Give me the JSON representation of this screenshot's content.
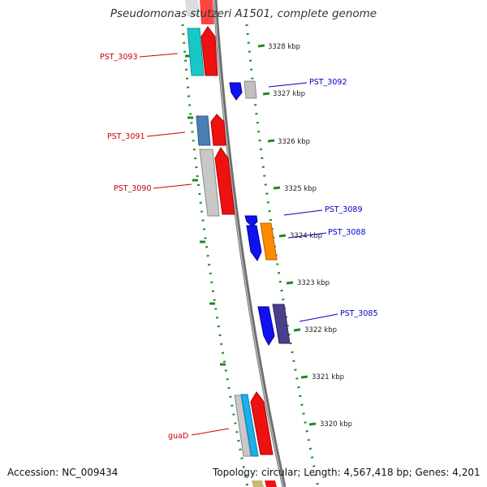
{
  "title": "Pseudomonas stutzeri A1501, complete genome",
  "accession": "Accession: NC_009434",
  "topology": "Topology: circular; Length: 4,567,418 bp; Genes: 4,201",
  "colors": {
    "backbone": "#8c8c8c",
    "ticks": "#1f8a1f",
    "forward_label": "#cc0000",
    "reverse_label": "#0000cc"
  },
  "ticks": [
    {
      "id": "3328",
      "label": "3328 kbp"
    },
    {
      "id": "3327",
      "label": "3327 kbp"
    },
    {
      "id": "3326",
      "label": "3326 kbp"
    },
    {
      "id": "3325",
      "label": "3325 kbp"
    },
    {
      "id": "3324",
      "label": "3324 kbp"
    },
    {
      "id": "3323",
      "label": "3323 kbp"
    },
    {
      "id": "3322",
      "label": "3322 kbp"
    },
    {
      "id": "3321",
      "label": "3321 kbp"
    },
    {
      "id": "3320",
      "label": "3320 kbp"
    }
  ],
  "gene_labels": [
    {
      "id": "PST_3093",
      "text": "PST_3093",
      "strand": "forward"
    },
    {
      "id": "PST_3091",
      "text": "PST_3091",
      "strand": "forward"
    },
    {
      "id": "PST_3090",
      "text": "PST_3090",
      "strand": "forward"
    },
    {
      "id": "guaD",
      "text": "guaD",
      "strand": "forward"
    },
    {
      "id": "PST_3092",
      "text": "PST_3092",
      "strand": "reverse"
    },
    {
      "id": "PST_3089",
      "text": "PST_3089",
      "strand": "reverse"
    },
    {
      "id": "PST_3088",
      "text": "PST_3088",
      "strand": "reverse"
    },
    {
      "id": "PST_3085",
      "text": "PST_3085",
      "strand": "reverse"
    }
  ]
}
